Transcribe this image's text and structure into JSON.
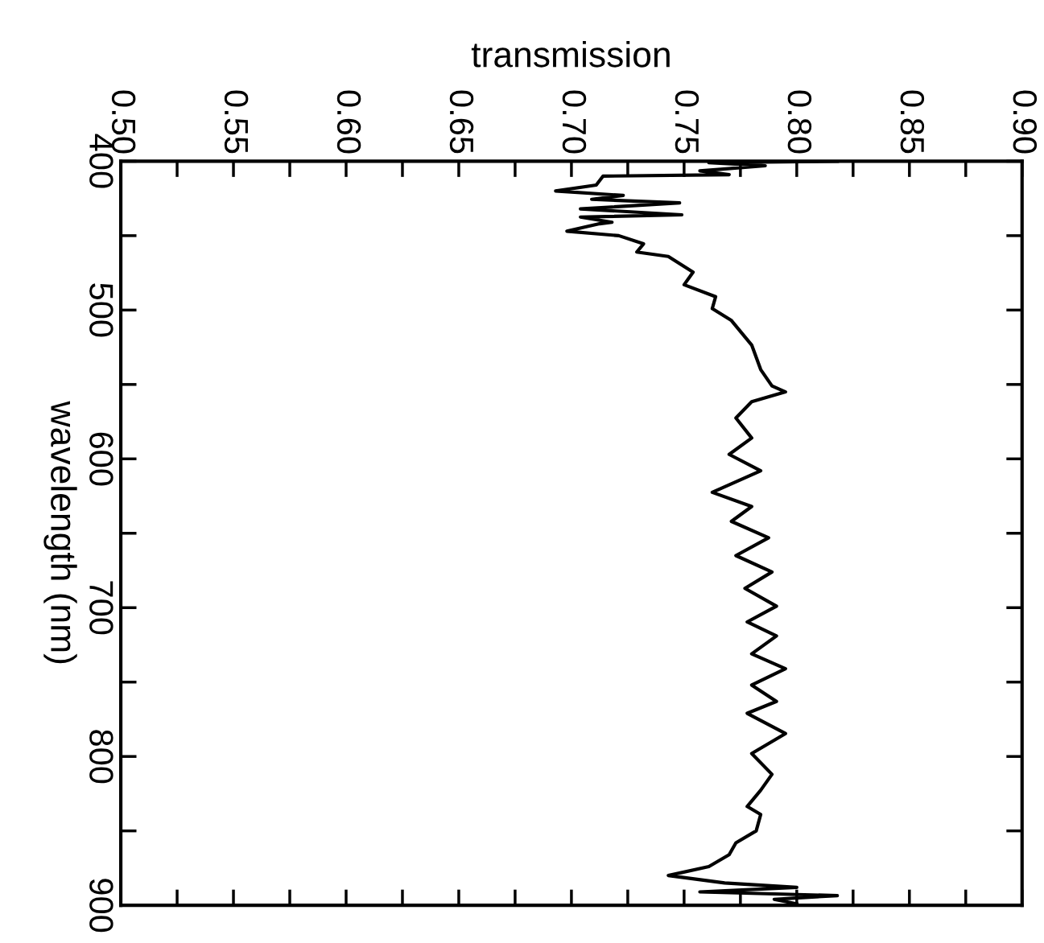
{
  "chart_data": {
    "type": "line",
    "xlabel": "transmission",
    "ylabel": "wavelength (nm)",
    "series": [
      {
        "color": "#000000",
        "x": [
          0.818,
          0.761,
          0.786,
          0.757,
          0.77,
          0.714,
          0.711,
          0.693,
          0.723,
          0.709,
          0.748,
          0.704,
          0.749,
          0.704,
          0.718,
          0.7125,
          0.698,
          0.721,
          0.732,
          0.729,
          0.743,
          0.754,
          0.75,
          0.764,
          0.7625,
          0.771,
          0.78,
          0.784,
          0.789,
          0.795,
          0.78,
          0.773,
          0.78,
          0.77,
          0.784,
          0.7625,
          0.78,
          0.771,
          0.7875,
          0.773,
          0.789,
          0.777,
          0.791,
          0.778,
          0.791,
          0.78,
          0.795,
          0.78,
          0.791,
          0.778,
          0.795,
          0.78,
          0.789,
          0.784,
          0.778,
          0.784,
          0.782,
          0.773,
          0.77,
          0.761,
          0.743,
          0.768,
          0.8,
          0.757,
          0.818,
          0.79,
          0.8
        ],
        "values": [
          400,
          401,
          403,
          406.5,
          409,
          410,
          416,
          420,
          423,
          425.6,
          428,
          432,
          436,
          437.5,
          441,
          442,
          447,
          450,
          455.5,
          461,
          464,
          474.5,
          483,
          491,
          499,
          507,
          523.5,
          540,
          551,
          555,
          561.6,
          572.5,
          586,
          597,
          608,
          622.5,
          632,
          642,
          653,
          665,
          676,
          687,
          699,
          709.6,
          719,
          731,
          741,
          752,
          763,
          771,
          784.6,
          798,
          812,
          822.7,
          833.6,
          839,
          850,
          858,
          866,
          874,
          880,
          885,
          888,
          891,
          893.5,
          896,
          899
        ]
      }
    ],
    "ylim": [
      900,
      400
    ],
    "yticks": [
      400,
      500,
      600,
      700,
      800,
      900
    ],
    "xlim": [
      0.5,
      0.9
    ],
    "xticks": [
      {
        "value": 0.5,
        "label": "0.50"
      },
      {
        "value": 0.55,
        "label": "0.55"
      },
      {
        "value": 0.6,
        "label": "0.60"
      },
      {
        "value": 0.65,
        "label": "0.65"
      },
      {
        "value": 0.7,
        "label": "0.70"
      },
      {
        "value": 0.75,
        "label": "0.75"
      },
      {
        "value": 0.8,
        "label": "0.80"
      },
      {
        "value": 0.85,
        "label": "0.85"
      },
      {
        "value": 0.9,
        "label": "0.90"
      }
    ],
    "grid": false,
    "legend": false
  }
}
